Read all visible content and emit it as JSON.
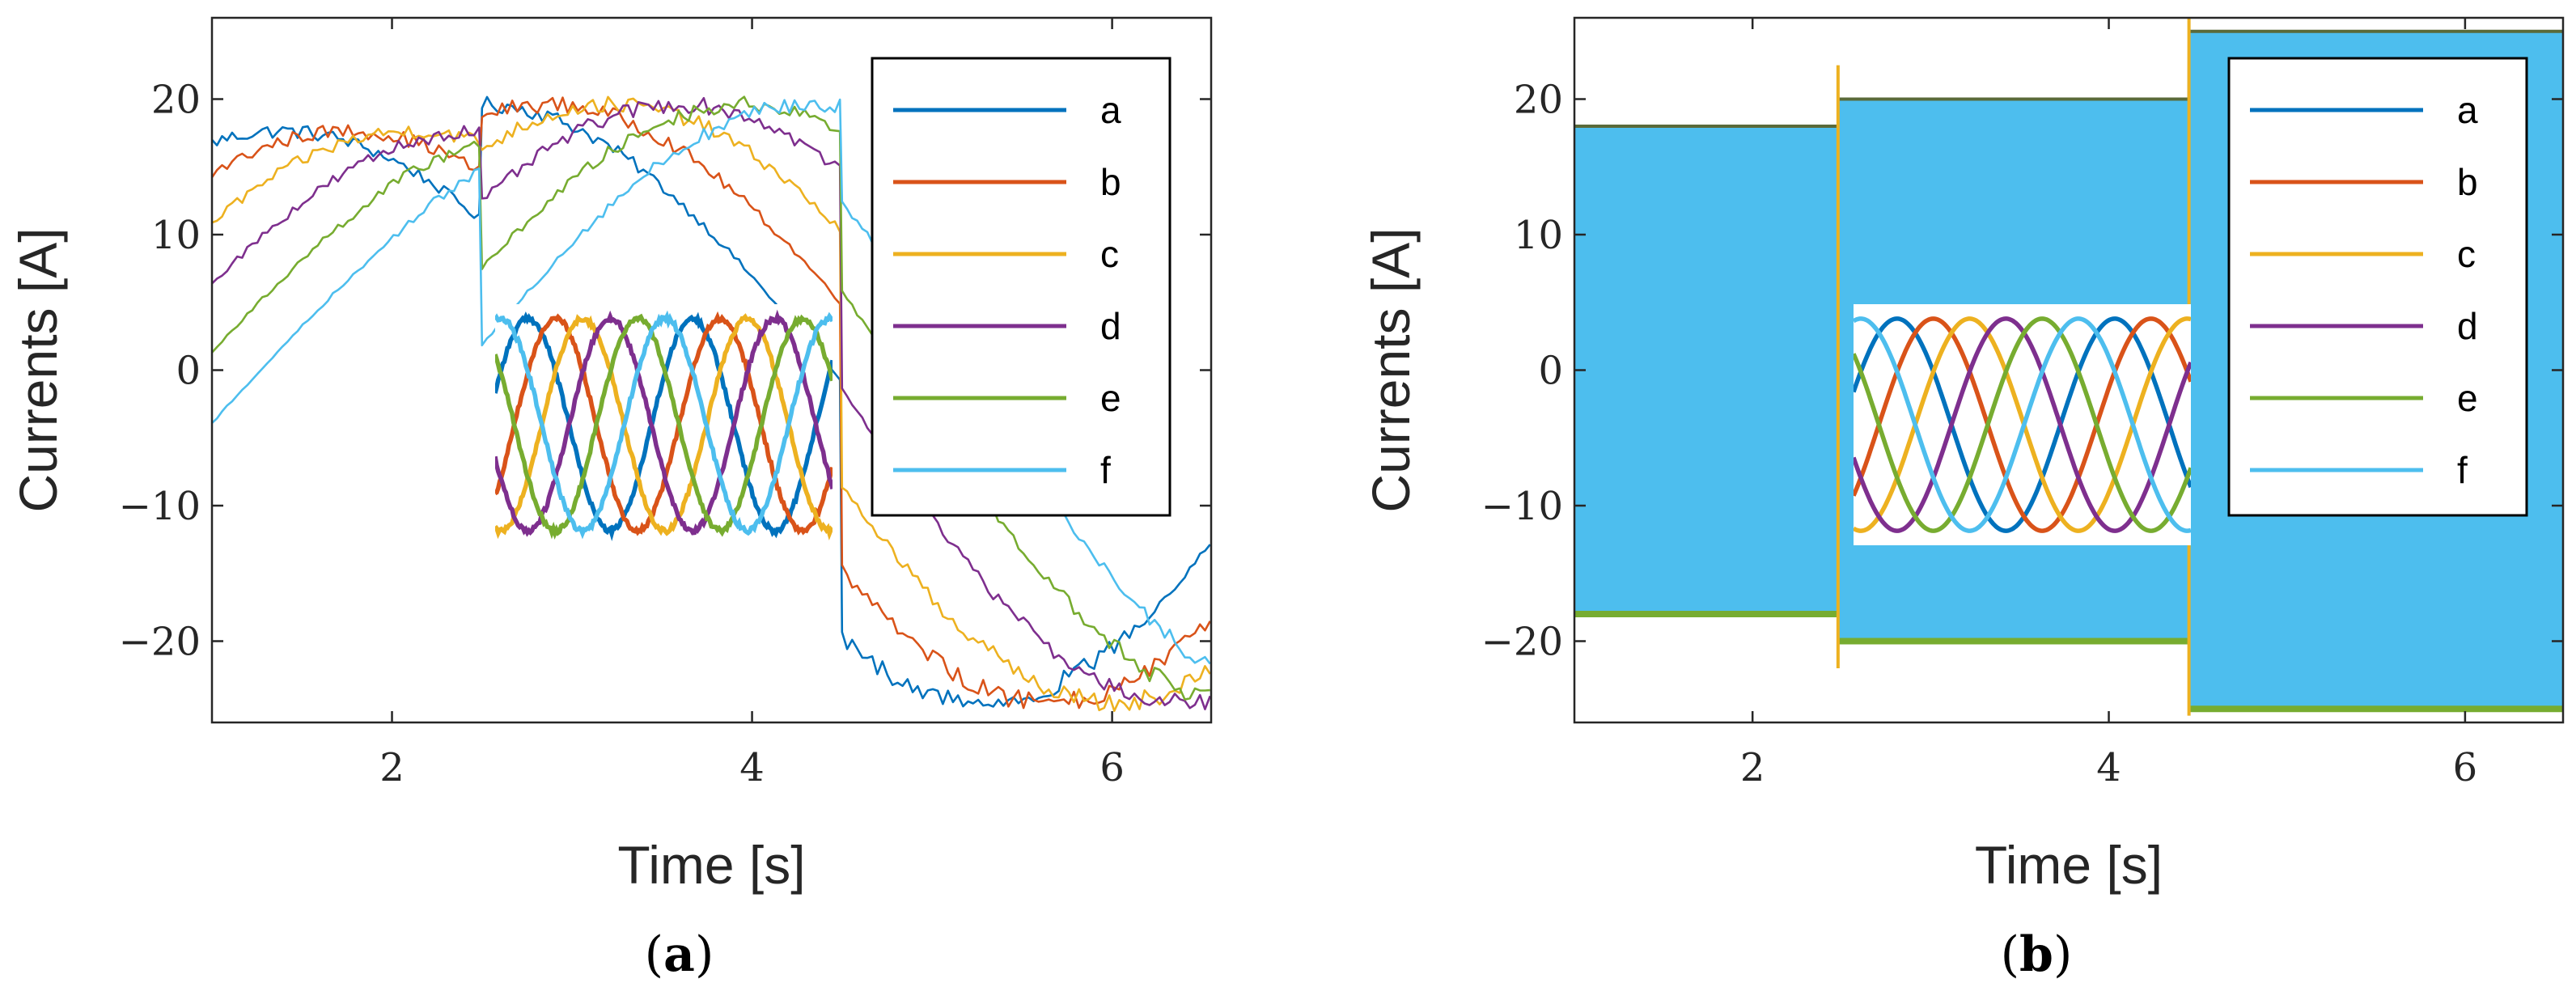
{
  "chart_data": [
    {
      "type": "line",
      "panel_label": "(a)",
      "xlabel": "Time [s]",
      "ylabel": "Currents [A]",
      "xlim": [
        1,
        6.55
      ],
      "ylim": [
        -26,
        26
      ],
      "xticks": [
        2,
        4,
        6
      ],
      "yticks": [
        20,
        10,
        0,
        -10,
        -20
      ],
      "grid": false,
      "legend_position": "right",
      "legend": [
        "a",
        "b",
        "c",
        "d",
        "e",
        "f"
      ],
      "colors": [
        "#0072BD",
        "#D95319",
        "#EDB120",
        "#7E2F8E",
        "#77AC30",
        "#4DBEEE"
      ],
      "envelope_segments": [
        {
          "t_start": 1.0,
          "t_end": 2.5,
          "peak": 18
        },
        {
          "t_start": 2.5,
          "t_end": 4.5,
          "peak": 20
        },
        {
          "t_start": 4.5,
          "t_end": 6.55,
          "peak": 25
        }
      ],
      "inset": {
        "description_phases": 6,
        "type": "line",
        "style": "noisy"
      }
    },
    {
      "type": "line",
      "panel_label": "(b)",
      "xlabel": "Time [s]",
      "ylabel": "Currents [A]",
      "xlim": [
        1,
        6.55
      ],
      "ylim": [
        -26,
        26
      ],
      "xticks": [
        2,
        4,
        6
      ],
      "yticks": [
        20,
        10,
        0,
        -10,
        -20
      ],
      "grid": false,
      "legend_position": "right",
      "legend": [
        "a",
        "b",
        "c",
        "d",
        "e",
        "f"
      ],
      "colors": [
        "#0072BD",
        "#D95319",
        "#EDB120",
        "#7E2F8E",
        "#77AC30",
        "#4DBEEE"
      ],
      "envelope_segments": [
        {
          "t_start": 1.0,
          "t_end": 2.48,
          "peak": 18
        },
        {
          "t_start": 2.48,
          "t_end": 4.45,
          "peak": 20
        },
        {
          "t_start": 4.45,
          "t_end": 6.55,
          "peak": 25
        }
      ],
      "inset": {
        "description_phases": 6,
        "type": "line",
        "style": "clean"
      }
    }
  ]
}
